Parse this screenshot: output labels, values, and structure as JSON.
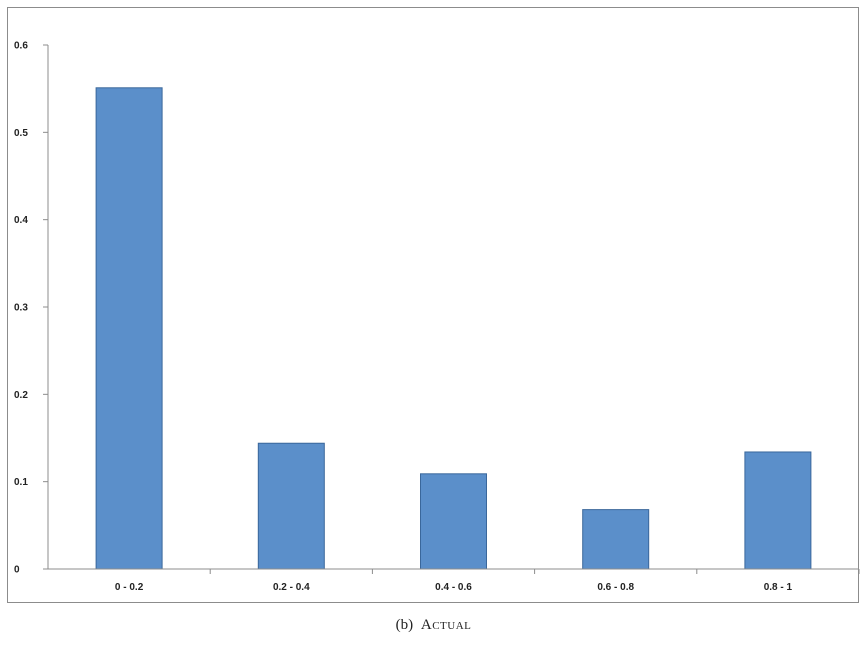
{
  "chart_data": {
    "type": "bar",
    "categories": [
      "0 - 0.2",
      "0.2 - 0.4",
      "0.4 - 0.6",
      "0.6 - 0.8",
      "0.8 - 1"
    ],
    "values": [
      0.551,
      0.144,
      0.109,
      0.068,
      0.134
    ],
    "y_ticks": [
      "0",
      "0.1",
      "0.2",
      "0.3",
      "0.4",
      "0.5",
      "0.6"
    ],
    "ylim": [
      0,
      0.6
    ],
    "grid": false,
    "legend": "none",
    "bar_color": "#5b8fca",
    "bar_edge_color": "#3a679b"
  },
  "caption": {
    "tag": "(b)",
    "title": "Actual"
  }
}
